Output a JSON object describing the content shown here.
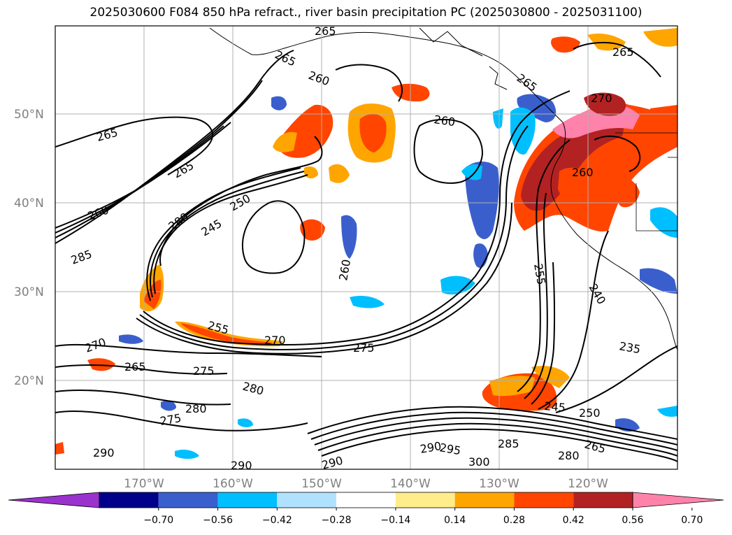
{
  "title": "2025030600 F084 850 hPa refract., river basin precipitation PC (2025030800 - 2025031100)",
  "map": {
    "lat_labels": [
      "50°N",
      "40°N",
      "30°N",
      "20°N"
    ],
    "lon_labels": [
      "170°W",
      "160°W",
      "150°W",
      "140°W",
      "130°W",
      "120°W"
    ],
    "contour_labels": [
      {
        "text": "265"
      },
      {
        "text": "265"
      },
      {
        "text": "260"
      },
      {
        "text": "265"
      },
      {
        "text": "260"
      },
      {
        "text": "265"
      },
      {
        "text": "265"
      },
      {
        "text": "270"
      },
      {
        "text": "265"
      },
      {
        "text": "260"
      },
      {
        "text": "250"
      },
      {
        "text": "280"
      },
      {
        "text": "245"
      },
      {
        "text": "260"
      },
      {
        "text": "285"
      },
      {
        "text": "260"
      },
      {
        "text": "255"
      },
      {
        "text": "240"
      },
      {
        "text": "255"
      },
      {
        "text": "270"
      },
      {
        "text": "275"
      },
      {
        "text": "235"
      },
      {
        "text": "270"
      },
      {
        "text": "265"
      },
      {
        "text": "275"
      },
      {
        "text": "280"
      },
      {
        "text": "280"
      },
      {
        "text": "275"
      },
      {
        "text": "245"
      },
      {
        "text": "250"
      },
      {
        "text": "290"
      },
      {
        "text": "295"
      },
      {
        "text": "285"
      },
      {
        "text": "265"
      },
      {
        "text": "290"
      },
      {
        "text": "300"
      },
      {
        "text": "280"
      },
      {
        "text": "290"
      },
      {
        "text": "290"
      }
    ]
  },
  "colorbar": {
    "tick_labels": [
      "−0.70",
      "−0.56",
      "−0.42",
      "−0.28",
      "−0.14",
      "0.14",
      "0.28",
      "0.42",
      "0.56",
      "0.70"
    ],
    "colors": [
      "#9a32cd",
      "#00008b",
      "#3a5fcd",
      "#00bfff",
      "#b0e2ff",
      "#ffffff",
      "#ffec8b",
      "#ffa500",
      "#ff4500",
      "#b22222",
      "#ff82ab"
    ]
  }
}
